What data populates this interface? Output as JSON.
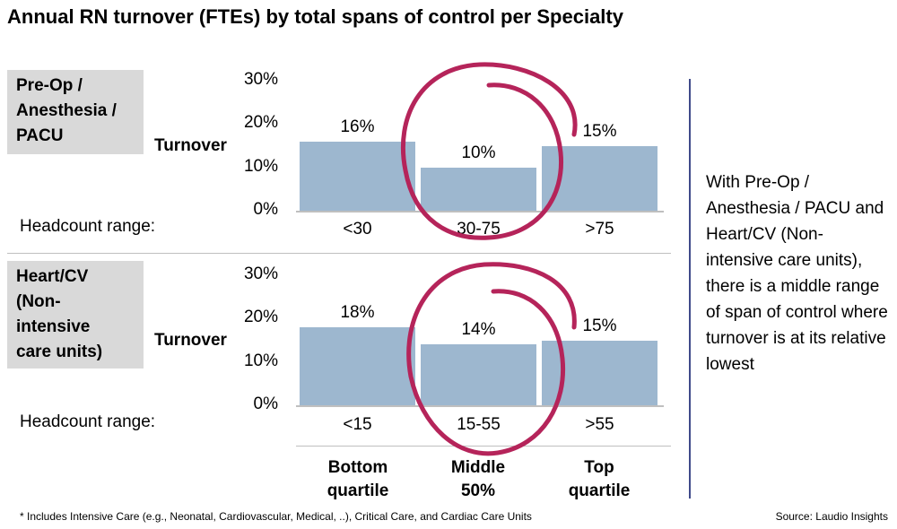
{
  "title": "Annual RN turnover (FTEs) by total spans of control per Specialty",
  "turnover_label": "Turnover",
  "headcount_label": "Headcount range:",
  "quartiles": [
    "Bottom\nquartile",
    "Middle\n50%",
    "Top\nquartile"
  ],
  "side_note": "With Pre-Op / Anesthesia / PACU and Heart/CV (Non-intensive care units), there is a middle range of span of control where turnover is at its relative lowest",
  "footnote": "* Includes Intensive Care (e.g., Neonatal, Cardiovascular, Medical, ..), Critical Care, and Cardiac Care Units",
  "source": "Source: Laudio Insights",
  "colors": {
    "bar": "#9db7cf",
    "circle": "#b5245a",
    "divider": "#3f4a8a",
    "label_bg": "#d9d9d9"
  },
  "chart_data": [
    {
      "type": "bar",
      "panel_label": "Pre-Op /\nAnesthesia /\nPACU",
      "ylabel": "Turnover",
      "xlabel": "Headcount range:",
      "categories": [
        "<30",
        "30-75",
        ">75"
      ],
      "values": [
        16,
        10,
        15
      ],
      "value_labels": [
        "16%",
        "10%",
        "15%"
      ],
      "yticks": [
        "30%",
        "20%",
        "10%",
        "0%"
      ],
      "ylim": [
        0,
        30
      ]
    },
    {
      "type": "bar",
      "panel_label": "Heart/CV\n(Non-\nintensive\ncare units)",
      "ylabel": "Turnover",
      "xlabel": "Headcount range:",
      "categories": [
        "<15",
        "15-55",
        ">55"
      ],
      "values": [
        18,
        14,
        15
      ],
      "value_labels": [
        "18%",
        "14%",
        "15%"
      ],
      "yticks": [
        "30%",
        "20%",
        "10%",
        "0%"
      ],
      "ylim": [
        0,
        30
      ]
    }
  ]
}
